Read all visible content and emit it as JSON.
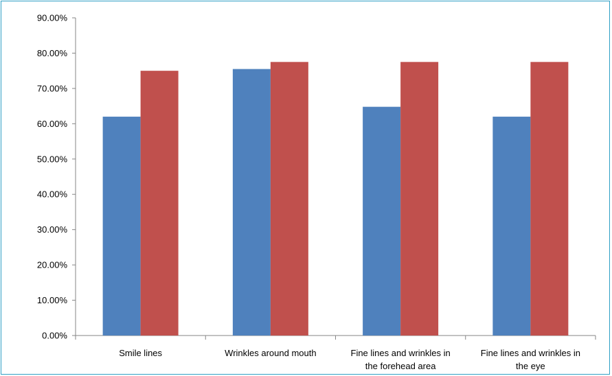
{
  "chart_data": {
    "type": "bar",
    "categories": [
      [
        "Smile lines"
      ],
      [
        "Wrinkles around  mouth"
      ],
      [
        "Fine lines and wrinkles in",
        "the forehead area"
      ],
      [
        "Fine lines and wrinkles in",
        "the eye"
      ]
    ],
    "series": [
      {
        "color": "#4f81bd",
        "values": [
          62.0,
          75.5,
          64.8,
          62.0
        ]
      },
      {
        "color": "#c0504d",
        "values": [
          75.0,
          77.5,
          77.5,
          77.5
        ]
      }
    ],
    "ylim": [
      0,
      90
    ],
    "yticks": [
      "0.00%",
      "10.00%",
      "20.00%",
      "30.00%",
      "40.00%",
      "50.00%",
      "60.00%",
      "70.00%",
      "80.00%",
      "90.00%"
    ],
    "xlabel": "",
    "ylabel": "",
    "title": "",
    "grid": false,
    "legend": "none"
  }
}
